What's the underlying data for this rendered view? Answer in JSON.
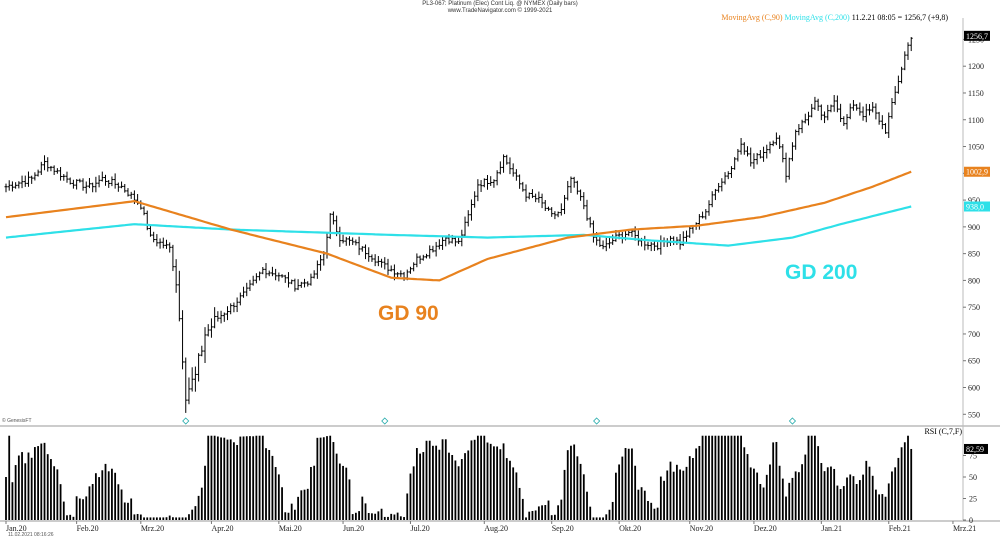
{
  "header": {
    "title": "PL3-067: Platinum (Elec) Cont Liq. @ NYMEX (Daily bars)",
    "subtitle": "www.TradeNavigator.com © 1999-2021"
  },
  "legend": {
    "ma90": "MovingAvg (C,90)",
    "ma200": "MovingAvg (C,200)",
    "quote": "11.2.21 08:05 = 1256,7 (+9,8)"
  },
  "annotations": {
    "gd90": "GD 90",
    "gd200": "GD 200"
  },
  "footer": {
    "credit": "© GenesisFT",
    "timestamp": "11.02.2021 08:16:26"
  },
  "rsi_title": "RSI (C,7,F)",
  "colors": {
    "ma90": "#e8821e",
    "ma200": "#2ee0e8",
    "bars": "#000000",
    "last_tag": "#000000"
  },
  "chart_data": {
    "type": "ohlc_bar",
    "price": {
      "yticks": [
        550,
        600,
        650,
        700,
        750,
        800,
        850,
        900,
        950,
        1000,
        1050,
        1100,
        1150,
        1200,
        1250
      ],
      "yrange": [
        530,
        1290
      ],
      "close_anchors": [
        [
          0,
          975
        ],
        [
          8,
          990
        ],
        [
          12,
          1020
        ],
        [
          20,
          985
        ],
        [
          26,
          975
        ],
        [
          30,
          990
        ],
        [
          36,
          975
        ],
        [
          42,
          940
        ],
        [
          45,
          880
        ],
        [
          48,
          870
        ],
        [
          51,
          860
        ],
        [
          53,
          800
        ],
        [
          56,
          590
        ],
        [
          59,
          620
        ],
        [
          62,
          700
        ],
        [
          66,
          730
        ],
        [
          70,
          750
        ],
        [
          75,
          780
        ],
        [
          80,
          820
        ],
        [
          85,
          810
        ],
        [
          90,
          790
        ],
        [
          95,
          800
        ],
        [
          99,
          850
        ],
        [
          101,
          920
        ],
        [
          104,
          880
        ],
        [
          108,
          870
        ],
        [
          113,
          850
        ],
        [
          117,
          830
        ],
        [
          120,
          820
        ],
        [
          124,
          810
        ],
        [
          128,
          840
        ],
        [
          133,
          860
        ],
        [
          137,
          880
        ],
        [
          141,
          870
        ],
        [
          144,
          920
        ],
        [
          147,
          980
        ],
        [
          152,
          990
        ],
        [
          155,
          1030
        ],
        [
          158,
          1000
        ],
        [
          162,
          960
        ],
        [
          166,
          950
        ],
        [
          170,
          920
        ],
        [
          173,
          930
        ],
        [
          176,
          990
        ],
        [
          180,
          940
        ],
        [
          183,
          880
        ],
        [
          186,
          860
        ],
        [
          190,
          880
        ],
        [
          194,
          890
        ],
        [
          199,
          870
        ],
        [
          203,
          865
        ],
        [
          207,
          880
        ],
        [
          210,
          870
        ],
        [
          214,
          900
        ],
        [
          218,
          930
        ],
        [
          222,
          980
        ],
        [
          226,
          1010
        ],
        [
          229,
          1060
        ],
        [
          232,
          1020
        ],
        [
          236,
          1040
        ],
        [
          240,
          1070
        ],
        [
          243,
          1000
        ],
        [
          246,
          1080
        ],
        [
          249,
          1100
        ],
        [
          252,
          1130
        ],
        [
          255,
          1100
        ],
        [
          258,
          1140
        ],
        [
          261,
          1090
        ],
        [
          264,
          1130
        ],
        [
          267,
          1110
        ],
        [
          270,
          1120
        ],
        [
          274,
          1080
        ],
        [
          277,
          1150
        ],
        [
          280,
          1220
        ],
        [
          282,
          1256.7
        ]
      ],
      "ma90": [
        [
          0,
          918
        ],
        [
          40,
          948
        ],
        [
          70,
          895
        ],
        [
          100,
          850
        ],
        [
          120,
          805
        ],
        [
          135,
          800
        ],
        [
          150,
          840
        ],
        [
          175,
          880
        ],
        [
          195,
          895
        ],
        [
          215,
          902
        ],
        [
          235,
          918
        ],
        [
          255,
          945
        ],
        [
          270,
          975
        ],
        [
          282,
          1002.9
        ]
      ],
      "ma200": [
        [
          0,
          880
        ],
        [
          40,
          905
        ],
        [
          70,
          895
        ],
        [
          120,
          885
        ],
        [
          150,
          880
        ],
        [
          180,
          885
        ],
        [
          200,
          875
        ],
        [
          225,
          865
        ],
        [
          245,
          880
        ],
        [
          260,
          905
        ],
        [
          282,
          938
        ]
      ],
      "last_tags": [
        {
          "label": "1256,7",
          "value": 1256.7,
          "bg": "#000000"
        },
        {
          "label": "1002,9",
          "value": 1002.9,
          "bg": "#e8821e"
        },
        {
          "label": "938,0",
          "value": 938,
          "bg": "#2ee0e8"
        }
      ]
    },
    "rsi": {
      "yticks": [
        0,
        25,
        50,
        75
      ],
      "yrange": [
        0,
        100
      ],
      "last_label": "82,59"
    },
    "x": {
      "session_count": 283,
      "labels": [
        {
          "text": "Jan.20",
          "i": 0
        },
        {
          "text": "Feb.20",
          "i": 22
        },
        {
          "text": "Mrz.20",
          "i": 42
        },
        {
          "text": "Apr.20",
          "i": 64
        },
        {
          "text": "Mai.20",
          "i": 85
        },
        {
          "text": "Jun.20",
          "i": 105
        },
        {
          "text": "Jul.20",
          "i": 126
        },
        {
          "text": "Aug.20",
          "i": 149
        },
        {
          "text": "Sep.20",
          "i": 170
        },
        {
          "text": "Okt.20",
          "i": 191
        },
        {
          "text": "Nov.20",
          "i": 213
        },
        {
          "text": "Dez.20",
          "i": 233
        },
        {
          "text": "Jan.21",
          "i": 254
        },
        {
          "text": "Feb.21",
          "i": 275
        },
        {
          "text": "Mrz.21",
          "i": 295
        }
      ]
    }
  }
}
